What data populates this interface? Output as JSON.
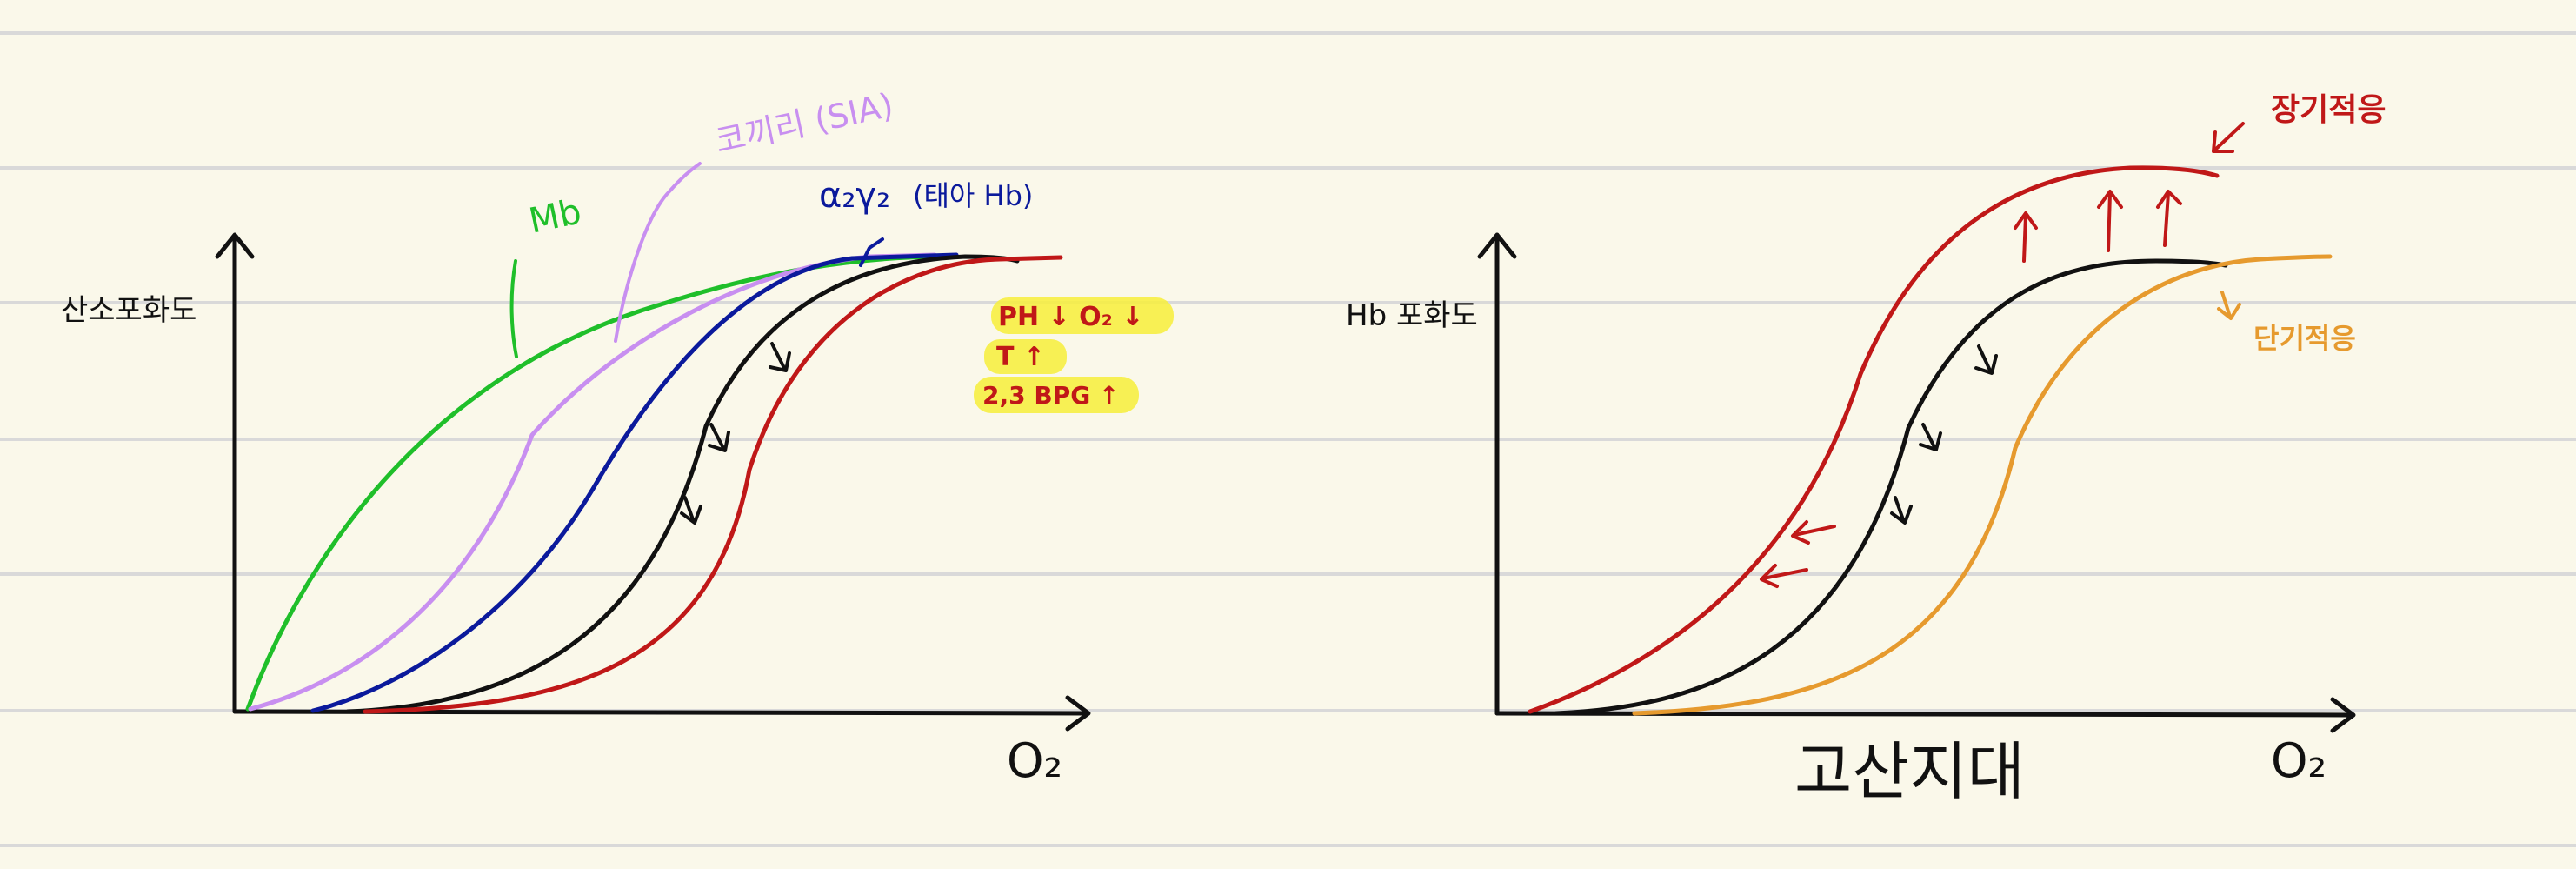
{
  "colors": {
    "paper": "#faf8ea",
    "rule_line": "#d9d9d9",
    "axis": "#111111",
    "green": "#1fbf2a",
    "lavender": "#c88ff0",
    "navy": "#0b1a9c",
    "black": "#111111",
    "red": "#c01818",
    "orange": "#e69a2e",
    "highlight": "#f7ef3a"
  },
  "left_diagram": {
    "y_axis_label": "산소포화도",
    "x_axis_label": "O₂",
    "mb_label": "Mb",
    "elephant_label": "코끼리 (SIA)",
    "fetal_label_greek": "α₂γ₂",
    "fetal_label_ko": "(태아 Hb)",
    "factors": [
      "PH ↓   O₂ ↓",
      "T ↑",
      "2,3 BPG ↑"
    ]
  },
  "right_diagram": {
    "y_axis_label": "Hb 포화도",
    "x_axis_label": "O₂",
    "title": "고산지대",
    "long_term_label": "장기적응",
    "short_term_label": "단기적응"
  }
}
